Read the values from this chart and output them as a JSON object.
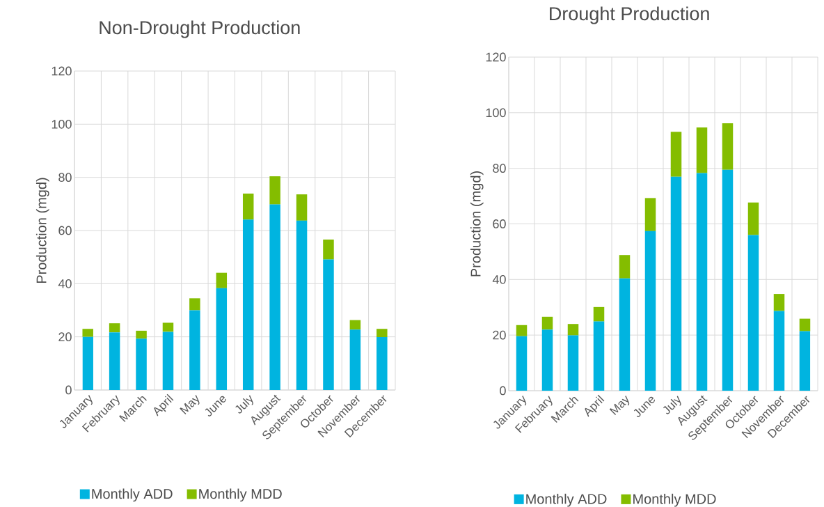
{
  "chart_data": [
    {
      "type": "bar",
      "title": "Non-Drought Production",
      "ylabel": "Production (mgd)",
      "stacked": true,
      "grid": true,
      "legend": "bottom",
      "categories": [
        "January",
        "February",
        "March",
        "April",
        "May",
        "June",
        "July",
        "August",
        "September",
        "October",
        "November",
        "December"
      ],
      "ylim": [
        0,
        120
      ],
      "yticks": [
        0,
        20,
        40,
        60,
        80,
        100,
        120
      ],
      "series": [
        {
          "name": "Monthly ADD",
          "color": "#00b4e0",
          "values": [
            20,
            21.7,
            19.3,
            21.9,
            30,
            38.3,
            64.1,
            69.8,
            63.7,
            49.1,
            22.7,
            19.9
          ]
        },
        {
          "name": "Monthly MDD",
          "color": "#84bd00",
          "values": [
            3,
            3.4,
            3,
            3.4,
            4.5,
            5.8,
            9.8,
            10.6,
            9.9,
            7.5,
            3.6,
            3.1
          ]
        }
      ]
    },
    {
      "type": "bar",
      "title": "Drought Production",
      "ylabel": "Production (mgd)",
      "stacked": true,
      "grid": true,
      "legend": "bottom",
      "categories": [
        "January",
        "February",
        "March",
        "April",
        "May",
        "June",
        "July",
        "August",
        "September",
        "October",
        "November",
        "December"
      ],
      "ylim": [
        0,
        120
      ],
      "yticks": [
        0,
        20,
        40,
        60,
        80,
        100,
        120
      ],
      "series": [
        {
          "name": "Monthly ADD",
          "color": "#00b4e0",
          "values": [
            19.6,
            22,
            19.9,
            24.9,
            40.4,
            57.4,
            77,
            78.3,
            79.5,
            56,
            28.7,
            21.4
          ]
        },
        {
          "name": "Monthly MDD",
          "color": "#84bd00",
          "values": [
            4,
            4.6,
            4.1,
            5.2,
            8.4,
            11.9,
            16.1,
            16.4,
            16.7,
            11.7,
            6.1,
            4.5
          ]
        }
      ]
    }
  ]
}
